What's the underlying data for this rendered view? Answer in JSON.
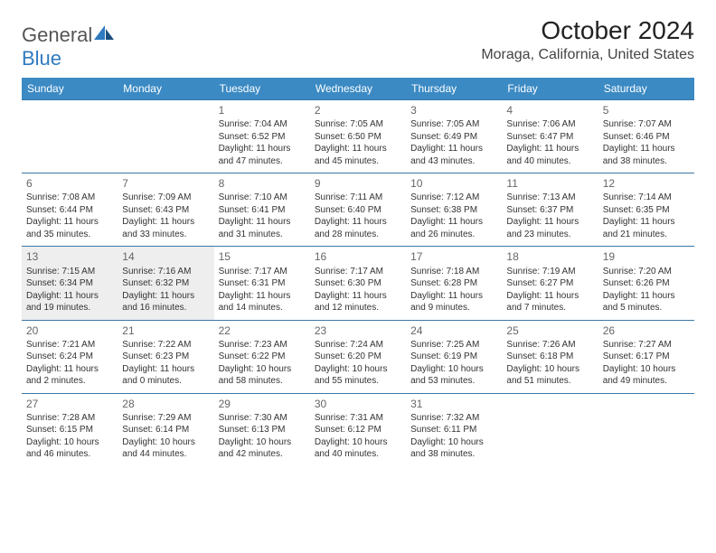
{
  "brand": {
    "name_main": "General",
    "name_accent": "Blue"
  },
  "title": {
    "month": "October 2024",
    "location": "Moraga, California, United States"
  },
  "style": {
    "header_bg": "#3b8ac4",
    "header_text": "#ffffff",
    "border_color": "#3b78a8",
    "shaded_bg": "#eeeeee",
    "month_fontsize": 28,
    "location_fontsize": 16,
    "daynum_color": "#666"
  },
  "daynames": [
    "Sunday",
    "Monday",
    "Tuesday",
    "Wednesday",
    "Thursday",
    "Friday",
    "Saturday"
  ],
  "weeks": [
    [
      null,
      null,
      {
        "d": "1",
        "sr": "7:04 AM",
        "ss": "6:52 PM",
        "dl": "11 hours and 47 minutes."
      },
      {
        "d": "2",
        "sr": "7:05 AM",
        "ss": "6:50 PM",
        "dl": "11 hours and 45 minutes."
      },
      {
        "d": "3",
        "sr": "7:05 AM",
        "ss": "6:49 PM",
        "dl": "11 hours and 43 minutes."
      },
      {
        "d": "4",
        "sr": "7:06 AM",
        "ss": "6:47 PM",
        "dl": "11 hours and 40 minutes."
      },
      {
        "d": "5",
        "sr": "7:07 AM",
        "ss": "6:46 PM",
        "dl": "11 hours and 38 minutes."
      }
    ],
    [
      {
        "d": "6",
        "sr": "7:08 AM",
        "ss": "6:44 PM",
        "dl": "11 hours and 35 minutes."
      },
      {
        "d": "7",
        "sr": "7:09 AM",
        "ss": "6:43 PM",
        "dl": "11 hours and 33 minutes."
      },
      {
        "d": "8",
        "sr": "7:10 AM",
        "ss": "6:41 PM",
        "dl": "11 hours and 31 minutes."
      },
      {
        "d": "9",
        "sr": "7:11 AM",
        "ss": "6:40 PM",
        "dl": "11 hours and 28 minutes."
      },
      {
        "d": "10",
        "sr": "7:12 AM",
        "ss": "6:38 PM",
        "dl": "11 hours and 26 minutes."
      },
      {
        "d": "11",
        "sr": "7:13 AM",
        "ss": "6:37 PM",
        "dl": "11 hours and 23 minutes."
      },
      {
        "d": "12",
        "sr": "7:14 AM",
        "ss": "6:35 PM",
        "dl": "11 hours and 21 minutes."
      }
    ],
    [
      {
        "d": "13",
        "sr": "7:15 AM",
        "ss": "6:34 PM",
        "dl": "11 hours and 19 minutes.",
        "shaded": true
      },
      {
        "d": "14",
        "sr": "7:16 AM",
        "ss": "6:32 PM",
        "dl": "11 hours and 16 minutes.",
        "shaded": true
      },
      {
        "d": "15",
        "sr": "7:17 AM",
        "ss": "6:31 PM",
        "dl": "11 hours and 14 minutes."
      },
      {
        "d": "16",
        "sr": "7:17 AM",
        "ss": "6:30 PM",
        "dl": "11 hours and 12 minutes."
      },
      {
        "d": "17",
        "sr": "7:18 AM",
        "ss": "6:28 PM",
        "dl": "11 hours and 9 minutes."
      },
      {
        "d": "18",
        "sr": "7:19 AM",
        "ss": "6:27 PM",
        "dl": "11 hours and 7 minutes."
      },
      {
        "d": "19",
        "sr": "7:20 AM",
        "ss": "6:26 PM",
        "dl": "11 hours and 5 minutes."
      }
    ],
    [
      {
        "d": "20",
        "sr": "7:21 AM",
        "ss": "6:24 PM",
        "dl": "11 hours and 2 minutes."
      },
      {
        "d": "21",
        "sr": "7:22 AM",
        "ss": "6:23 PM",
        "dl": "11 hours and 0 minutes."
      },
      {
        "d": "22",
        "sr": "7:23 AM",
        "ss": "6:22 PM",
        "dl": "10 hours and 58 minutes."
      },
      {
        "d": "23",
        "sr": "7:24 AM",
        "ss": "6:20 PM",
        "dl": "10 hours and 55 minutes."
      },
      {
        "d": "24",
        "sr": "7:25 AM",
        "ss": "6:19 PM",
        "dl": "10 hours and 53 minutes."
      },
      {
        "d": "25",
        "sr": "7:26 AM",
        "ss": "6:18 PM",
        "dl": "10 hours and 51 minutes."
      },
      {
        "d": "26",
        "sr": "7:27 AM",
        "ss": "6:17 PM",
        "dl": "10 hours and 49 minutes."
      }
    ],
    [
      {
        "d": "27",
        "sr": "7:28 AM",
        "ss": "6:15 PM",
        "dl": "10 hours and 46 minutes."
      },
      {
        "d": "28",
        "sr": "7:29 AM",
        "ss": "6:14 PM",
        "dl": "10 hours and 44 minutes."
      },
      {
        "d": "29",
        "sr": "7:30 AM",
        "ss": "6:13 PM",
        "dl": "10 hours and 42 minutes."
      },
      {
        "d": "30",
        "sr": "7:31 AM",
        "ss": "6:12 PM",
        "dl": "10 hours and 40 minutes."
      },
      {
        "d": "31",
        "sr": "7:32 AM",
        "ss": "6:11 PM",
        "dl": "10 hours and 38 minutes."
      },
      null,
      null
    ]
  ],
  "labels": {
    "sunrise": "Sunrise: ",
    "sunset": "Sunset: ",
    "daylight": "Daylight: "
  }
}
